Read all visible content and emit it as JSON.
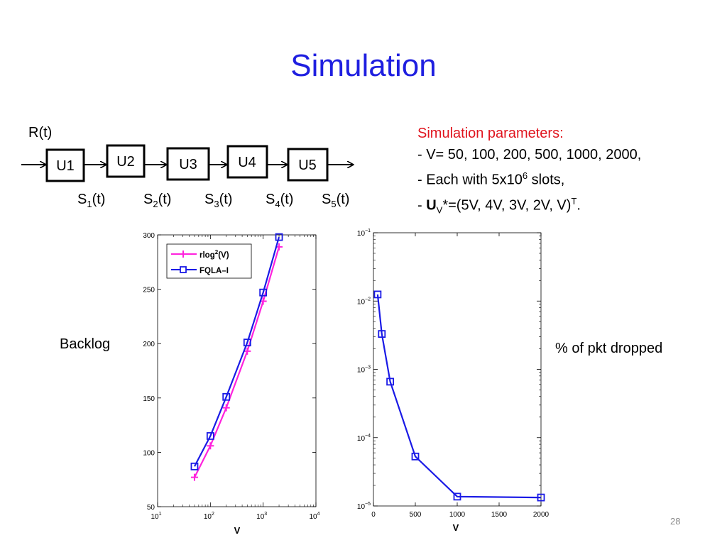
{
  "slide": {
    "title": "Simulation",
    "page_number": "28"
  },
  "diagram": {
    "input_label": "R(t)",
    "queues": [
      "U1",
      "U2",
      "U3",
      "U4",
      "U5"
    ],
    "servers": [
      {
        "base": "S",
        "sub": "1",
        "tail": "(t)"
      },
      {
        "base": "S",
        "sub": "2",
        "tail": "(t)"
      },
      {
        "base": "S",
        "sub": "3",
        "tail": "(t)"
      },
      {
        "base": "S",
        "sub": "4",
        "tail": "(t)"
      },
      {
        "base": "S",
        "sub": "5",
        "tail": "(t)"
      }
    ]
  },
  "parameters": {
    "heading": "Simulation parameters:",
    "line1": "- V= 50, 100, 200, 500, 1000, 2000,",
    "line2_pre": "- Each with 5x10",
    "line2_sup": "6",
    "line2_post": " slots,",
    "line3_dash": "- ",
    "line3_bold": "U",
    "line3_sub": "V",
    "line3_post": "*=(5V, 4V, 3V, 2V, V)",
    "line3_sup": "T",
    "line3_end": "."
  },
  "labels": {
    "left_chart": "Backlog",
    "right_chart": "% of pkt dropped"
  },
  "colors": {
    "title": "#1f1fe0",
    "heading": "#e0141e",
    "series_magenta": "#ff22dd",
    "series_blue": "#1a1ae6"
  },
  "chart_data": [
    {
      "type": "line",
      "xscale": "log",
      "xlabel": "V",
      "ylabel": "",
      "xlim": [
        10,
        10000
      ],
      "ylim": [
        50,
        300
      ],
      "x_ticks": [
        10,
        100,
        1000,
        10000
      ],
      "x_tick_labels": [
        {
          "base": "10",
          "exp": "1"
        },
        {
          "base": "10",
          "exp": "2"
        },
        {
          "base": "10",
          "exp": "3"
        },
        {
          "base": "10",
          "exp": "4"
        }
      ],
      "y_ticks": [
        50,
        100,
        150,
        200,
        250,
        300
      ],
      "y_tick_labels": [
        "50",
        "100",
        "150",
        "200",
        "250",
        "300"
      ],
      "grid": false,
      "legend": "top-left",
      "series": [
        {
          "name_base": "rlog",
          "name_sup": "2",
          "name_tail": "(V)",
          "marker": "plus",
          "color": "#ff22dd",
          "x": [
            50,
            100,
            200,
            500,
            1000,
            2000
          ],
          "y": [
            77,
            106,
            141,
            193,
            239,
            289
          ]
        },
        {
          "name": "FQLA–I",
          "marker": "square",
          "color": "#1a1ae6",
          "x": [
            50,
            100,
            200,
            500,
            1000,
            2000
          ],
          "y": [
            87,
            115,
            151,
            201,
            247,
            298
          ]
        }
      ]
    },
    {
      "type": "line",
      "yscale": "log",
      "xlabel": "V",
      "ylabel": "",
      "xlim": [
        0,
        2000
      ],
      "ylim": [
        1e-05,
        0.1
      ],
      "x_ticks": [
        0,
        500,
        1000,
        1500,
        2000
      ],
      "x_tick_labels": [
        "0",
        "500",
        "1000",
        "1500",
        "2000"
      ],
      "y_ticks": [
        1e-05,
        0.0001,
        0.001,
        0.01,
        0.1
      ],
      "y_tick_labels": [
        {
          "base": "10",
          "exp": "−5"
        },
        {
          "base": "10",
          "exp": "−4"
        },
        {
          "base": "10",
          "exp": "−3"
        },
        {
          "base": "10",
          "exp": "−2"
        },
        {
          "base": "10",
          "exp": "−1"
        }
      ],
      "grid": false,
      "series": [
        {
          "marker": "square",
          "color": "#1a1ae6",
          "x": [
            50,
            100,
            200,
            500,
            1000,
            2000
          ],
          "y": [
            0.0125,
            0.0033,
            0.00066,
            5.3e-05,
            1.37e-05,
            1.33e-05
          ]
        }
      ]
    }
  ]
}
